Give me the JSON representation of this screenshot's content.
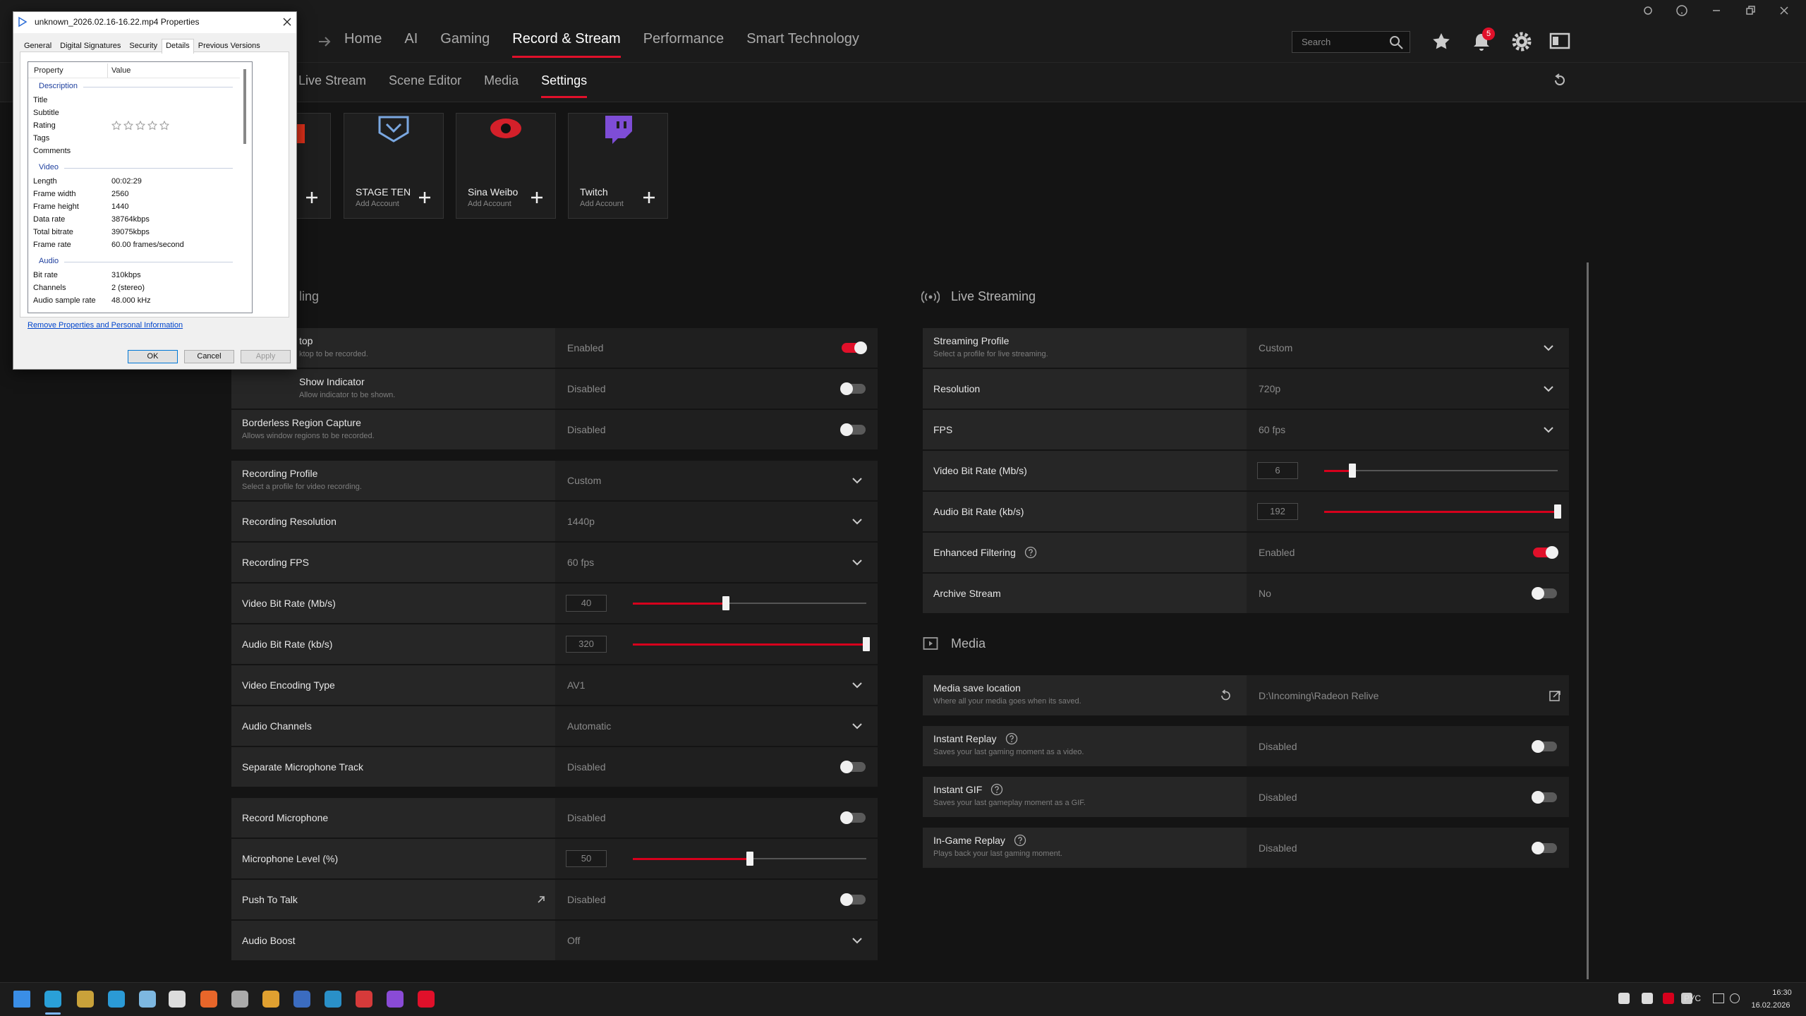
{
  "top_bar": {
    "nav_tabs": [
      "Home",
      "AI",
      "Gaming",
      "Record & Stream",
      "Performance",
      "Smart Technology"
    ],
    "active_nav": 3,
    "search_placeholder": "Search",
    "notification_count": 5
  },
  "sub_tabs": [
    "Live Stream",
    "Scene Editor",
    "Media",
    "Settings"
  ],
  "active_sub": 3,
  "platforms": [
    {
      "name": "STAGE TEN",
      "action": "Add Account"
    },
    {
      "name": "Sina Weibo",
      "action": "Add Account"
    },
    {
      "name": "Twitch",
      "action": "Add Account"
    }
  ],
  "recording": {
    "title": "ling",
    "groups": [
      [
        {
          "label": "top",
          "description": "ktop to be recorded.",
          "value": "Enabled",
          "control": "toggle",
          "on": true
        },
        {
          "label": "Show Indicator",
          "description": "Allow indicator to be shown.",
          "value": "Disabled",
          "control": "toggle",
          "on": false
        },
        {
          "label": "Borderless Region Capture",
          "description": "Allows window regions to be recorded.",
          "value": "Disabled",
          "control": "toggle",
          "on": false
        }
      ],
      [
        {
          "label": "Recording Profile",
          "description": "Select a profile for video recording.",
          "value": "Custom",
          "control": "dropdown"
        },
        {
          "label": "Recording Resolution",
          "value": "1440p",
          "control": "dropdown"
        },
        {
          "label": "Recording FPS",
          "value": "60 fps",
          "control": "dropdown"
        },
        {
          "label": "Video Bit Rate (Mb/s)",
          "value": 40,
          "control": "slider",
          "range": [
            0,
            100
          ]
        },
        {
          "label": "Audio Bit Rate (kb/s)",
          "value": 320,
          "control": "slider",
          "range": [
            0,
            320
          ]
        },
        {
          "label": "Video Encoding Type",
          "value": "AV1",
          "control": "dropdown"
        },
        {
          "label": "Audio Channels",
          "value": "Automatic",
          "control": "dropdown"
        },
        {
          "label": "Separate Microphone Track",
          "value": "Disabled",
          "control": "toggle",
          "on": false
        }
      ],
      [
        {
          "label": "Record Microphone",
          "value": "Disabled",
          "control": "toggle",
          "on": false
        },
        {
          "label": "Microphone Level (%)",
          "value": 50,
          "control": "slider",
          "range": [
            0,
            100
          ]
        },
        {
          "label": "Push To Talk",
          "value": "Disabled",
          "control": "toggle",
          "on": false,
          "link": true
        },
        {
          "label": "Audio Boost",
          "value": "Off",
          "control": "dropdown"
        }
      ]
    ]
  },
  "live_streaming": {
    "title": "Live Streaming",
    "rows": [
      {
        "label": "Streaming Profile",
        "description": "Select a profile for live streaming.",
        "value": "Custom",
        "control": "dropdown"
      },
      {
        "label": "Resolution",
        "value": "720p",
        "control": "dropdown"
      },
      {
        "label": "FPS",
        "value": "60 fps",
        "control": "dropdown"
      },
      {
        "label": "Video Bit Rate (Mb/s)",
        "value": 6,
        "control": "slider",
        "range": [
          0,
          50
        ]
      },
      {
        "label": "Audio Bit Rate (kb/s)",
        "value": 192,
        "control": "slider",
        "range": [
          0,
          192
        ]
      },
      {
        "label": "Enhanced Filtering",
        "value": "Enabled",
        "control": "toggle",
        "on": true,
        "help": true
      },
      {
        "label": "Archive Stream",
        "value": "No",
        "control": "toggle",
        "on": false
      }
    ]
  },
  "media": {
    "title": "Media",
    "rows": [
      {
        "label": "Media save location",
        "description": "Where all your media goes when its saved.",
        "value": "D:\\Incoming\\Radeon Relive",
        "control": "folder"
      },
      {
        "label": "Instant Replay",
        "description": "Saves your last gaming moment as a video.",
        "value": "Disabled",
        "control": "toggle",
        "on": false,
        "help": true
      },
      {
        "label": "Instant GIF",
        "description": "Saves your last gameplay moment as a GIF.",
        "value": "Disabled",
        "control": "toggle",
        "on": false,
        "help": true
      },
      {
        "label": "In-Game Replay",
        "description": "Plays back your last gaming moment.",
        "value": "Disabled",
        "control": "toggle",
        "on": false,
        "help": true
      }
    ]
  },
  "dialog": {
    "title": "unknown_2026.02.16-16.22.mp4 Properties",
    "tabs": [
      "General",
      "Digital Signatures",
      "Security",
      "Details",
      "Previous Versions"
    ],
    "active_tab": 3,
    "columns": [
      "Property",
      "Value"
    ],
    "sections": [
      {
        "title": "Description",
        "items": [
          {
            "property": "Title"
          },
          {
            "property": "Subtitle"
          },
          {
            "property": "Rating",
            "stars": 5
          },
          {
            "property": "Tags"
          },
          {
            "property": "Comments"
          }
        ]
      },
      {
        "title": "Video",
        "items": [
          {
            "property": "Length",
            "value": "00:02:29"
          },
          {
            "property": "Frame width",
            "value": "2560"
          },
          {
            "property": "Frame height",
            "value": "1440"
          },
          {
            "property": "Data rate",
            "value": "38764kbps"
          },
          {
            "property": "Total bitrate",
            "value": "39075kbps"
          },
          {
            "property": "Frame rate",
            "value": "60.00 frames/second"
          }
        ]
      },
      {
        "title": "Audio",
        "items": [
          {
            "property": "Bit rate",
            "value": "310kbps"
          },
          {
            "property": "Channels",
            "value": "2 (stereo)"
          },
          {
            "property": "Audio sample rate",
            "value": "48.000 kHz"
          }
        ]
      }
    ],
    "link": "Remove Properties and Personal Information",
    "buttons": [
      "OK",
      "Cancel",
      "Apply"
    ]
  },
  "taskbar": {
    "language": "РУС",
    "time": "16:30",
    "date": "16.02.2026"
  }
}
